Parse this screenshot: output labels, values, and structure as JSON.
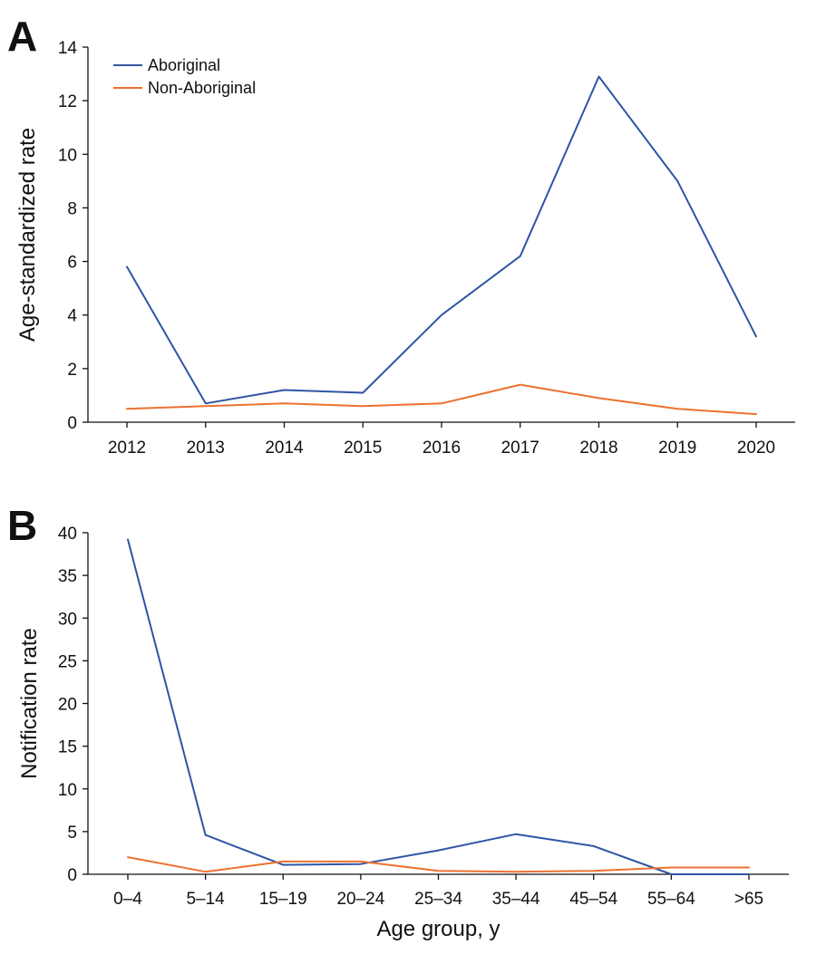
{
  "chart_data": [
    {
      "type": "line",
      "panel_label": "A",
      "title": "",
      "xlabel": "",
      "ylabel": "Age-standardized rate",
      "categories": [
        "2012",
        "2013",
        "2014",
        "2015",
        "2016",
        "2017",
        "2018",
        "2019",
        "2020"
      ],
      "ylim": [
        0,
        14
      ],
      "yticks": [
        0,
        2,
        4,
        6,
        8,
        10,
        12,
        14
      ],
      "grid": false,
      "legend_position": "top-left",
      "series": [
        {
          "name": "Aboriginal",
          "color": "#2f55a4",
          "values": [
            5.8,
            0.7,
            1.2,
            1.1,
            4.0,
            6.2,
            12.9,
            9.0,
            3.2
          ]
        },
        {
          "name": "Non-Aboriginal",
          "color": "#ed7130",
          "values": [
            0.5,
            0.6,
            0.7,
            0.6,
            0.7,
            1.4,
            0.9,
            0.5,
            0.3
          ]
        }
      ]
    },
    {
      "type": "line",
      "panel_label": "B",
      "title": "",
      "xlabel": "Age group, y",
      "ylabel": "Notification rate",
      "categories": [
        "0–4",
        "5–14",
        "15–19",
        "20–24",
        "25–34",
        "35–44",
        "45–54",
        "55–64",
        ">65"
      ],
      "ylim": [
        0,
        40
      ],
      "yticks": [
        0,
        5,
        10,
        15,
        20,
        25,
        30,
        35,
        40
      ],
      "grid": false,
      "legend_position": "none",
      "series": [
        {
          "name": "Aboriginal",
          "color": "#2f55a4",
          "values": [
            39.2,
            4.6,
            1.1,
            1.2,
            2.8,
            4.7,
            3.3,
            0.0,
            0.0
          ]
        },
        {
          "name": "Non-Aboriginal",
          "color": "#ed7130",
          "values": [
            2.0,
            0.3,
            1.5,
            1.5,
            0.4,
            0.3,
            0.4,
            0.8,
            0.8
          ]
        }
      ]
    }
  ]
}
